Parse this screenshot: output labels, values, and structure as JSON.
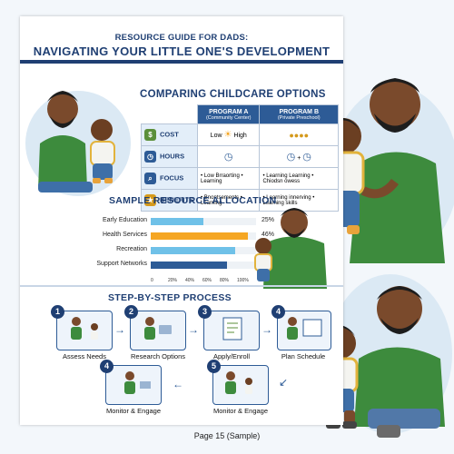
{
  "header": {
    "line1": "RESOURCE GUIDE FOR DADS:",
    "line2": "NAVIGATING YOUR LITTLE ONE'S DEVELOPMENT"
  },
  "comparison": {
    "title": "COMPARING CHILDCARE OPTIONS",
    "program_a": {
      "name": "PROGRAM A",
      "sub": "(Community Center)"
    },
    "program_b": {
      "name": "PROGRAM B",
      "sub": "(Private Preschool)"
    },
    "rows": [
      {
        "label": "COST",
        "a_low": "Low",
        "a_high": "High",
        "b": ""
      },
      {
        "label": "HOURS",
        "a": "",
        "b": "+"
      },
      {
        "label": "FOCUS",
        "a": "• Low Brraorting • Learning",
        "b": "• Learning Learning • Chiodsn owess"
      },
      {
        "label": "BENEFITS",
        "a": "• Bnontsements • Learning",
        "b": "• Learning innerving • Learning skills"
      }
    ]
  },
  "allocation": {
    "title": "SAMPLE RESOURCE ALLOCATION",
    "bars": [
      {
        "label": "Early Education",
        "value": 25,
        "shown": "25%",
        "color": "#6fc1e8"
      },
      {
        "label": "Health Services",
        "value": 46,
        "shown": "46%",
        "color": "#f5a623"
      },
      {
        "label": "Recreation",
        "value": 40,
        "shown": "40%",
        "color": "#6fc1e8"
      },
      {
        "label": "Support Networks",
        "value": 36,
        "shown": "36%",
        "color": "#2d5b96"
      }
    ],
    "ticks": [
      "0",
      "20%",
      "40%",
      "60%",
      "80%",
      "100%"
    ]
  },
  "process": {
    "title": "STEP-BY-STEP PROCESS",
    "steps": [
      {
        "n": "1",
        "label": "Assess Needs"
      },
      {
        "n": "2",
        "label": "Research Options"
      },
      {
        "n": "3",
        "label": "Apply/Enroll"
      },
      {
        "n": "4",
        "label": "Plan Schedule"
      },
      {
        "n": "4",
        "label": "Monitor & Engage"
      },
      {
        "n": "5",
        "label": "Monitor & Engage"
      }
    ]
  },
  "footer": {
    "text": "Page 15 (Sample)"
  }
}
